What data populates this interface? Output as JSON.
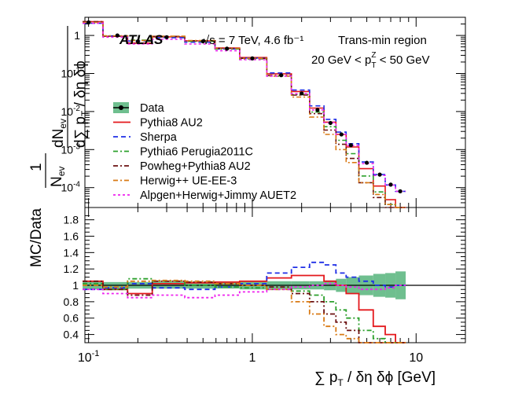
{
  "chart_data": {
    "type": "line",
    "experiment": "ATLAS",
    "energy_label": "√s = 7 TeV, 4.6 fb⁻¹",
    "region_label": "Trans-min region",
    "cut_label": "20 GeV < pTZ < 50 GeV",
    "cut_parts": {
      "left": "20 GeV < p",
      "sub": "T",
      "sup": "Z",
      "right": " < 50 GeV"
    },
    "xlabel": "∑ pT / δη δϕ [GeV]",
    "xlabel_parts": {
      "pre": "∑ p",
      "sub": "T",
      "post": " / δη δϕ [GeV]"
    },
    "ylabel_top": "1/Nev dNev/d∑pT/δηδϕ",
    "ylabel_parts": {
      "one": "1",
      "nev": "N",
      "nev_sub": "ev",
      "dn": "dN",
      "dn_sub": "ev",
      "dsum": "d∑ p",
      "dsum_sub": "T",
      "dsum_post": " / δη δϕ"
    },
    "ylabel_ratio": "MC/Data",
    "x_scale": "log",
    "xlim": [
      0.095,
      20
    ],
    "x_ticks": [
      {
        "v": 0.1,
        "label": "10⁻¹",
        "base": "10",
        "exp": "-1"
      },
      {
        "v": 1,
        "label": "1"
      },
      {
        "v": 10,
        "label": "10"
      }
    ],
    "top_ylim": [
      3e-05,
      3
    ],
    "top_y_ticks": [
      {
        "v": 1,
        "label": "1"
      },
      {
        "v": 0.1,
        "base": "10",
        "exp": "-1"
      },
      {
        "v": 0.01,
        "base": "10",
        "exp": "-2"
      },
      {
        "v": 0.001,
        "base": "10",
        "exp": "-3"
      },
      {
        "v": 0.0001,
        "base": "10",
        "exp": "-4"
      }
    ],
    "ratio_ylim": [
      0.3,
      1.95
    ],
    "ratio_y_ticks": [
      0.4,
      0.6,
      0.8,
      1,
      1.2,
      1.4,
      1.6,
      1.8
    ],
    "legend": {
      "position": "center-left"
    },
    "series": [
      {
        "name": "Data",
        "color": "#000000",
        "dash": "none",
        "band": "#6fbf8f",
        "x": [
          0.1,
          0.15,
          0.2,
          0.3,
          0.5,
          0.7,
          1,
          1.5,
          2,
          2.5,
          3,
          3.5,
          4,
          5,
          6,
          7,
          8
        ],
        "y": [
          2.2,
          1.0,
          0.7,
          0.9,
          0.7,
          0.45,
          0.25,
          0.09,
          0.03,
          0.011,
          0.005,
          0.0025,
          0.0013,
          0.00045,
          0.00022,
          0.00012,
          8e-05
        ],
        "ratio_unc": [
          0.05,
          0.04,
          0.04,
          0.04,
          0.04,
          0.04,
          0.05,
          0.05,
          0.05,
          0.05,
          0.06,
          0.08,
          0.1,
          0.12,
          0.14,
          0.15,
          0.17
        ]
      },
      {
        "name": "Pythia8 AU2",
        "color": "#e4181c",
        "dash": "none",
        "x": [
          0.1,
          0.15,
          0.2,
          0.3,
          0.5,
          0.7,
          1,
          1.5,
          2,
          2.5,
          3,
          3.5,
          4,
          5,
          6,
          7,
          8
        ],
        "ratio": [
          1.05,
          0.95,
          0.9,
          1.02,
          1.03,
          1.04,
          1.05,
          1.09,
          1.12,
          1.12,
          1.05,
          1.0,
          0.9,
          0.7,
          0.5,
          0.4,
          0.3
        ]
      },
      {
        "name": "Sherpa",
        "color": "#1f2ee6",
        "dash": "6,4",
        "x": [
          0.1,
          0.15,
          0.2,
          0.3,
          0.5,
          0.7,
          1,
          1.5,
          2,
          2.5,
          3,
          3.5,
          4,
          5,
          6,
          7,
          8
        ],
        "ratio": [
          0.95,
          0.97,
          1.02,
          0.97,
          0.95,
          0.98,
          1.02,
          1.15,
          1.22,
          1.28,
          1.25,
          1.15,
          1.1,
          1.05,
          1.0,
          0.98,
          1.0
        ]
      },
      {
        "name": "Pythia6 Perugia2011C",
        "color": "#2ca02c",
        "dash": "6,3,2,3",
        "x": [
          0.1,
          0.15,
          0.2,
          0.3,
          0.5,
          0.7,
          1,
          1.5,
          2,
          2.5,
          3,
          3.5,
          4,
          5,
          6,
          7,
          8
        ],
        "ratio": [
          1.02,
          0.95,
          1.08,
          1.05,
          1.0,
          0.98,
          0.97,
          0.95,
          0.93,
          0.88,
          0.8,
          0.7,
          0.6,
          0.45,
          0.35,
          0.3,
          0.3
        ]
      },
      {
        "name": "Powheg+Pythia8 AU2",
        "color": "#6b1010",
        "dash": "6,3,2,3",
        "x": [
          0.1,
          0.15,
          0.2,
          0.3,
          0.5,
          0.7,
          1,
          1.5,
          2,
          2.5,
          3,
          3.5,
          4,
          5,
          6,
          7,
          8
        ],
        "ratio": [
          1.05,
          0.95,
          0.88,
          1.05,
          1.04,
          1.02,
          1.0,
          0.98,
          0.9,
          0.8,
          0.65,
          0.55,
          0.45,
          0.3,
          0.25,
          0.2,
          0.2
        ]
      },
      {
        "name": "Herwig++ UE-EE-3",
        "color": "#d97a14",
        "dash": "6,3,2,3",
        "x": [
          0.1,
          0.15,
          0.2,
          0.3,
          0.5,
          0.7,
          1,
          1.5,
          2,
          2.5,
          3,
          3.5,
          4,
          5,
          6,
          7,
          8
        ],
        "ratio": [
          1.0,
          0.98,
          1.05,
          1.06,
          1.05,
          1.02,
          1.0,
          0.95,
          0.8,
          0.65,
          0.5,
          0.4,
          0.35,
          0.3,
          0.3,
          0.3,
          0.3
        ]
      },
      {
        "name": "Alpgen+Herwig+Jimmy AUET2",
        "color": "#ee22ee",
        "dash": "3,3",
        "x": [
          0.1,
          0.15,
          0.2,
          0.3,
          0.5,
          0.7,
          1,
          1.5,
          2,
          2.5,
          3,
          3.5,
          4,
          5,
          6,
          7,
          8
        ],
        "ratio": [
          0.95,
          0.9,
          0.85,
          0.88,
          0.85,
          0.88,
          0.92,
          0.95,
          0.98,
          1.0,
          1.02,
          1.0,
          0.98,
          0.95,
          0.95,
          0.97,
          1.0
        ]
      }
    ]
  }
}
